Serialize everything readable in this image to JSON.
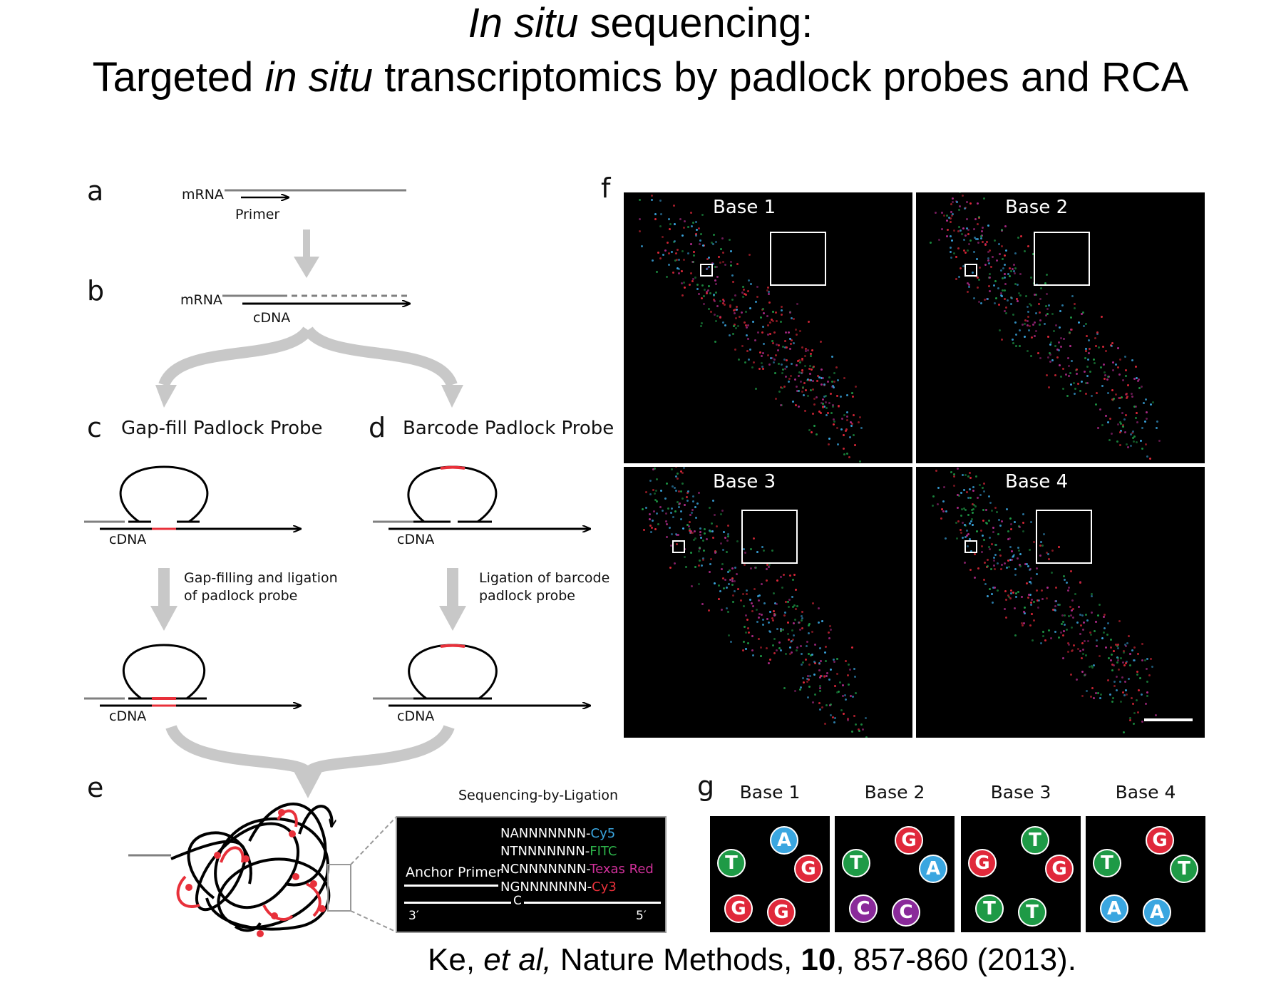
{
  "title": {
    "line1_italic": "In situ",
    "line1_rest": " sequencing:",
    "line2_a": "Targeted ",
    "line2_italic": "in situ",
    "line2_b": " transcriptomics by padlock probes and RCA"
  },
  "panels": {
    "a": "a",
    "b": "b",
    "c": "c",
    "d": "d",
    "e": "e",
    "f": "f",
    "g": "g"
  },
  "labels": {
    "mrna_a": "mRNA",
    "primer": "Primer",
    "mrna_b": "mRNA",
    "cdna_b": "cDNA",
    "gapfill_title": "Gap-fill Padlock Probe",
    "barcode_title": "Barcode Padlock Probe",
    "cdna_c1": "cDNA",
    "cdna_d1": "cDNA",
    "gapfill_step_1": "Gap-filling and ligation",
    "gapfill_step_2": "of padlock probe",
    "barcode_step_1": "Ligation of barcode",
    "barcode_step_2": "padlock probe",
    "cdna_c2": "cDNA",
    "cdna_d2": "cDNA",
    "sbl_title": "Sequencing-by-Ligation",
    "anchor_primer": "Anchor Primer",
    "end_3": "3′",
    "end_5": "5′",
    "base_c": "C"
  },
  "probes": [
    {
      "seq": "NANNNNNNN-",
      "dye": "Cy5",
      "color": "#3aa6e0"
    },
    {
      "seq": "NTNNNNNNN-",
      "dye": "FITC",
      "color": "#2db34a"
    },
    {
      "seq": "NCNNNNNNN-",
      "dye": "Texas Red",
      "color": "#d0309a"
    },
    {
      "seq": "NGNNNNNNN-",
      "dye": "Cy3",
      "color": "#e8303a"
    }
  ],
  "fluor_panels": [
    "Base 1",
    "Base 2",
    "Base 3",
    "Base 4"
  ],
  "g_panels": [
    {
      "label": "Base 1",
      "dots": [
        "A",
        "T",
        "G",
        "G",
        "G"
      ]
    },
    {
      "label": "Base 2",
      "dots": [
        "G",
        "T",
        "A",
        "C",
        "C"
      ]
    },
    {
      "label": "Base 3",
      "dots": [
        "T",
        "G",
        "G",
        "T",
        "T"
      ]
    },
    {
      "label": "Base 4",
      "dots": [
        "G",
        "T",
        "T",
        "A",
        "A"
      ]
    }
  ],
  "base_colors": {
    "A": "#3aa6e0",
    "T": "#1e9a46",
    "G": "#e0283a",
    "C": "#8a2a9a"
  },
  "citation": {
    "a": "Ke, ",
    "italic": "et al,",
    "b": " Nature Methods, ",
    "bold": "10",
    "c": ", 857-860 (2013)."
  }
}
